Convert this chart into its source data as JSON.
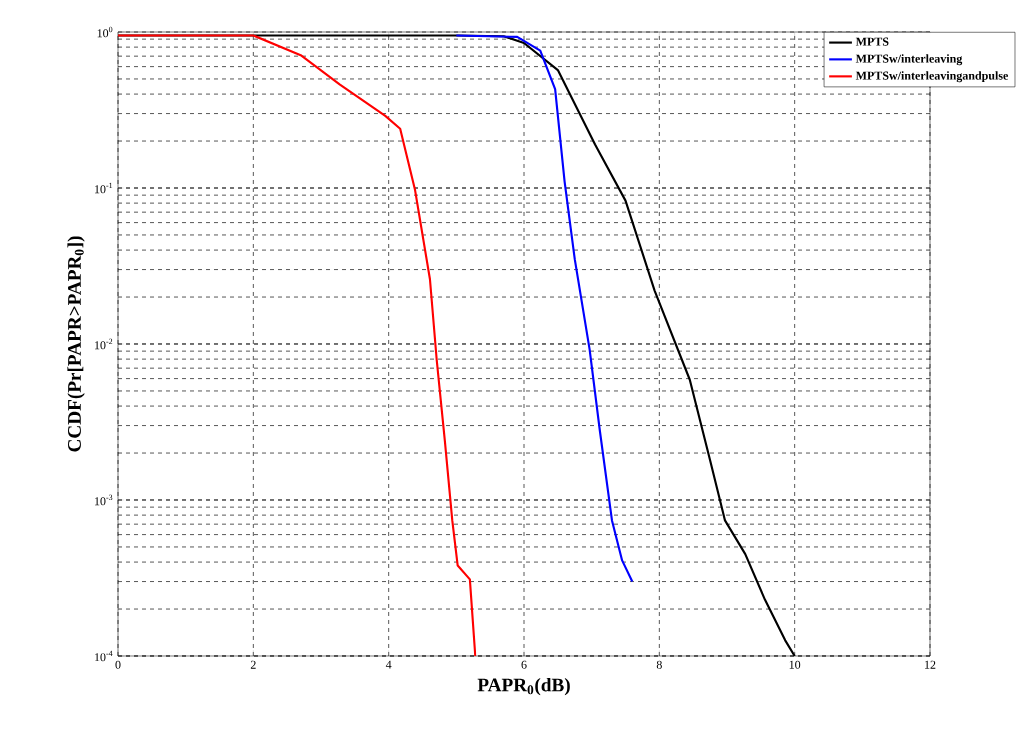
{
  "chart_data": {
    "type": "line",
    "xlabel": "PAPR$_{0}$(dB)",
    "ylabel": "CCDF(Pr[PAPR>PAPR$_{0}$])",
    "xlim": [
      0,
      12
    ],
    "ylim": [
      0.0001,
      1
    ],
    "xticks": [
      0,
      2,
      4,
      6,
      8,
      10,
      12
    ],
    "yticks": [
      {
        "value": 0.0001,
        "label": "10$^{-4}$"
      },
      {
        "value": 0.001,
        "label": "10$^{-3}$"
      },
      {
        "value": 0.01,
        "label": "10$^{-2}$"
      },
      {
        "value": 0.1,
        "label": "10$^{-1}$"
      },
      {
        "value": 1,
        "label": "10$^{0}$"
      }
    ],
    "log": "y",
    "grid": true,
    "legend": "top right",
    "marker": "none",
    "line_style": "solid",
    "series": [
      {
        "name": "MPTS",
        "color": "#000000",
        "x": [
          0,
          5.0,
          5.7,
          6.0,
          6.5,
          7.05,
          7.5,
          7.93,
          8.45,
          8.75,
          8.97,
          9.27,
          9.56,
          9.86,
          10.0
        ],
        "values": [
          0.95,
          0.95,
          0.94,
          0.85,
          0.57,
          0.19,
          0.083,
          0.022,
          0.0059,
          0.0018,
          0.00074,
          0.00045,
          0.00023,
          0.000126,
          0.0001
        ]
      },
      {
        "name": "MPTSw/interleaving",
        "color": "#0000ff",
        "x": [
          5.0,
          5.9,
          6.24,
          6.46,
          6.6,
          6.75,
          6.97,
          7.12,
          7.3,
          7.45,
          7.6
        ],
        "values": [
          0.95,
          0.93,
          0.76,
          0.43,
          0.11,
          0.035,
          0.0092,
          0.0028,
          0.00074,
          0.00041,
          0.0003
        ]
      },
      {
        "name": "MPTSw/interleavingandpulse",
        "color": "#ff0000",
        "x": [
          0,
          2.0,
          2.7,
          3.28,
          3.95,
          4.17,
          4.39,
          4.61,
          4.71,
          4.83,
          4.94,
          5.02,
          5.2,
          5.28
        ],
        "values": [
          0.95,
          0.95,
          0.71,
          0.46,
          0.29,
          0.24,
          0.097,
          0.026,
          0.0079,
          0.0024,
          0.00074,
          0.00038,
          0.00031,
          0.0001
        ]
      }
    ]
  }
}
